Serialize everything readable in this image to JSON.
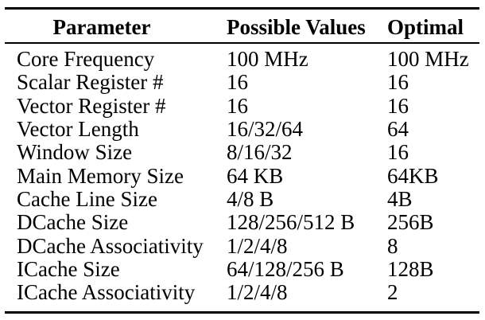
{
  "table": {
    "columns": [
      "Parameter",
      "Possible Values",
      "Optimal"
    ],
    "rows": [
      {
        "parameter": "Core Frequency",
        "possible_values": "100 MHz",
        "optimal": "100 MHz"
      },
      {
        "parameter": "Scalar Register #",
        "possible_values": "16",
        "optimal": "16"
      },
      {
        "parameter": "Vector Register #",
        "possible_values": "16",
        "optimal": "16"
      },
      {
        "parameter": "Vector Length",
        "possible_values": "16/32/64",
        "optimal": "64"
      },
      {
        "parameter": "Window Size",
        "possible_values": "8/16/32",
        "optimal": "16"
      },
      {
        "parameter": "Main Memory Size",
        "possible_values": "64 KB",
        "optimal": "64KB"
      },
      {
        "parameter": "Cache Line Size",
        "possible_values": "4/8 B",
        "optimal": "4B"
      },
      {
        "parameter": "DCache Size",
        "possible_values": "128/256/512 B",
        "optimal": "256B"
      },
      {
        "parameter": "DCache Associativity",
        "possible_values": "1/2/4/8",
        "optimal": "8"
      },
      {
        "parameter": "ICache Size",
        "possible_values": "64/128/256 B",
        "optimal": "128B"
      },
      {
        "parameter": "ICache Associativity",
        "possible_values": "1/2/4/8",
        "optimal": "2"
      }
    ],
    "colors": {
      "text": "#000000",
      "background": "#ffffff",
      "rule": "#000000"
    }
  }
}
